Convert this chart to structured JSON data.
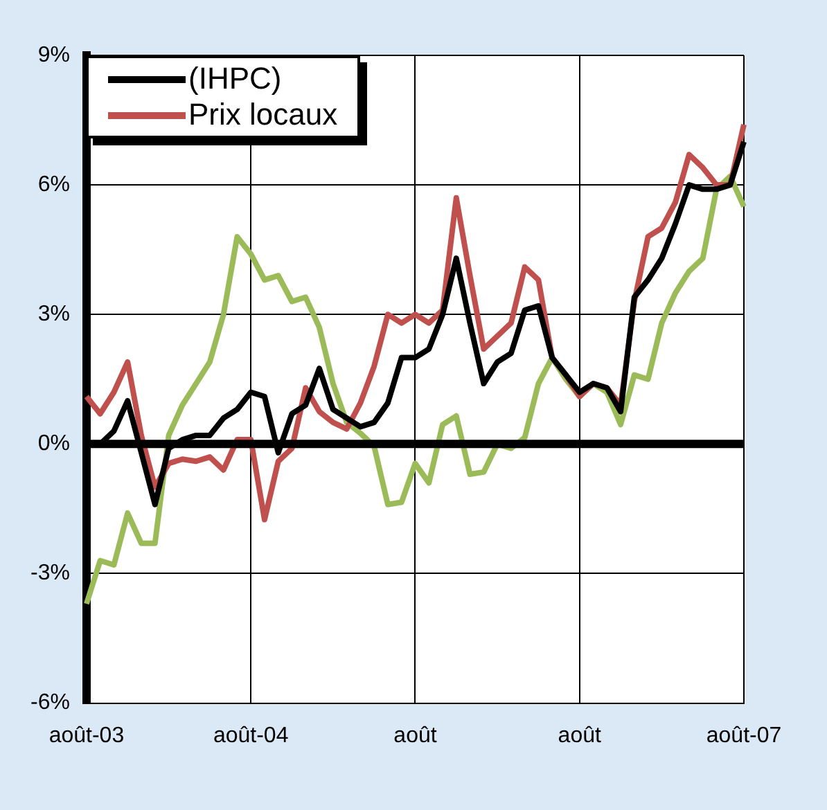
{
  "chart_data": {
    "type": "line",
    "categories": [
      "août-03",
      null,
      null,
      null,
      null,
      null,
      null,
      null,
      null,
      null,
      null,
      null,
      "août-04",
      null,
      null,
      null,
      null,
      null,
      null,
      null,
      null,
      null,
      null,
      null,
      "août",
      null,
      null,
      null,
      null,
      null,
      null,
      null,
      null,
      null,
      null,
      null,
      "août",
      null,
      null,
      null,
      null,
      null,
      null,
      null,
      null,
      null,
      null,
      null,
      "août-07"
    ],
    "series": [
      {
        "name": "(IHPC)",
        "color": "#000000",
        "values": [
          0,
          0,
          0.3,
          1,
          -0.2,
          -1.4,
          -0.1,
          0.1,
          0.2,
          0.2,
          0.6,
          0.8,
          1.2,
          1.1,
          -0.2,
          0.7,
          0.9,
          1.75,
          0.8,
          0.6,
          0.4,
          0.5,
          0.95,
          2,
          2,
          2.2,
          3,
          4.3,
          2.8,
          1.4,
          1.9,
          2.1,
          3.1,
          3.2,
          2,
          1.6,
          1.2,
          1.4,
          1.3,
          0.75,
          3.4,
          3.8,
          4.3,
          5.1,
          6,
          5.9,
          5.9,
          6,
          7
        ]
      },
      {
        "name": "Prix locaux",
        "color": "#c0504d",
        "values": [
          1.1,
          0.7,
          1.2,
          1.9,
          0.2,
          -1,
          -0.45,
          -0.35,
          -0.4,
          -0.3,
          -0.6,
          0.1,
          0.1,
          -1.75,
          -0.4,
          -0.1,
          1.3,
          0.75,
          0.5,
          0.35,
          0.95,
          1.8,
          3,
          2.8,
          3,
          2.8,
          3.1,
          5.7,
          3.9,
          2.2,
          2.5,
          2.8,
          4.1,
          3.8,
          2,
          1.6,
          1.1,
          1.4,
          1.3,
          0.9,
          3.3,
          4.8,
          5,
          5.6,
          6.7,
          6.4,
          6,
          6,
          7.4
        ]
      },
      {
        "color": "#9bbb59",
        "values": [
          -3.7,
          -2.7,
          -2.8,
          -1.6,
          -2.3,
          -2.3,
          0.2,
          0.9,
          1.4,
          1.9,
          3,
          4.8,
          4.4,
          3.8,
          3.9,
          3.3,
          3.4,
          2.7,
          1.4,
          0.5,
          0.25,
          -0.05,
          -1.4,
          -1.35,
          -0.45,
          -0.9,
          0.45,
          0.65,
          -0.7,
          -0.65,
          0,
          -0.1,
          0.15,
          1.4,
          2,
          1.5,
          1.1,
          1.4,
          1.2,
          0.45,
          1.6,
          1.5,
          2.8,
          3.5,
          4,
          4.3,
          5.9,
          6.2,
          5.5
        ]
      }
    ],
    "ylim": [
      -6,
      9
    ],
    "yticks": [
      {
        "value": -6,
        "label": "-6%"
      },
      {
        "value": -3,
        "label": "-3%"
      },
      {
        "value": 0,
        "label": "0%"
      },
      {
        "value": 3,
        "label": "3%"
      },
      {
        "value": 6,
        "label": "6%"
      },
      {
        "value": 9,
        "label": "9%"
      }
    ],
    "grid": true,
    "legend": "top left",
    "marker": "none",
    "line_style": "solid",
    "ref_lines": [
      {
        "axis": "y",
        "value": 0,
        "color": "#000000"
      }
    ]
  }
}
